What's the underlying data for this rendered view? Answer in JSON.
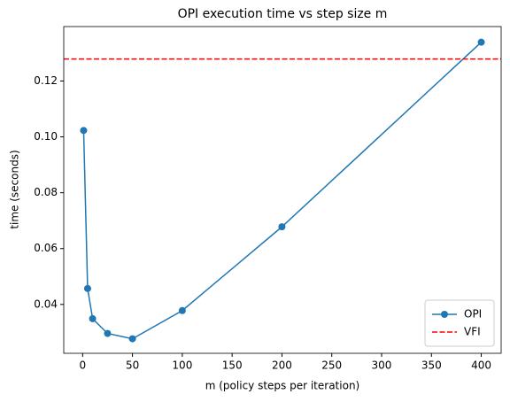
{
  "chart_data": {
    "type": "line",
    "title": "OPI execution time vs step size m",
    "x_label": "m (policy steps per iteration)",
    "y_label": "time (seconds)",
    "x": [
      1,
      5,
      10,
      25,
      50,
      100,
      200,
      400
    ],
    "series": [
      {
        "name": "OPI",
        "color": "#1f77b4",
        "marker": "o",
        "linestyle": "solid",
        "values": [
          0.1023,
          0.0457,
          0.0349,
          0.0296,
          0.0277,
          0.0378,
          0.0678,
          0.1339
        ]
      },
      {
        "name": "VFI",
        "color": "#ff0000",
        "linestyle": "dashed",
        "kind": "hline",
        "value": 0.1279
      }
    ],
    "xlim": [
      -18.95,
      419.95
    ],
    "ylim": [
      0.0225,
      0.1395
    ],
    "xticks": [
      0,
      50,
      100,
      150,
      200,
      250,
      300,
      350,
      400
    ],
    "yticks": [
      0.04,
      0.06,
      0.08,
      {
        "value": 0.1,
        "label": "0.10"
      },
      0.12
    ],
    "grid": false,
    "legend": "lower-right"
  }
}
